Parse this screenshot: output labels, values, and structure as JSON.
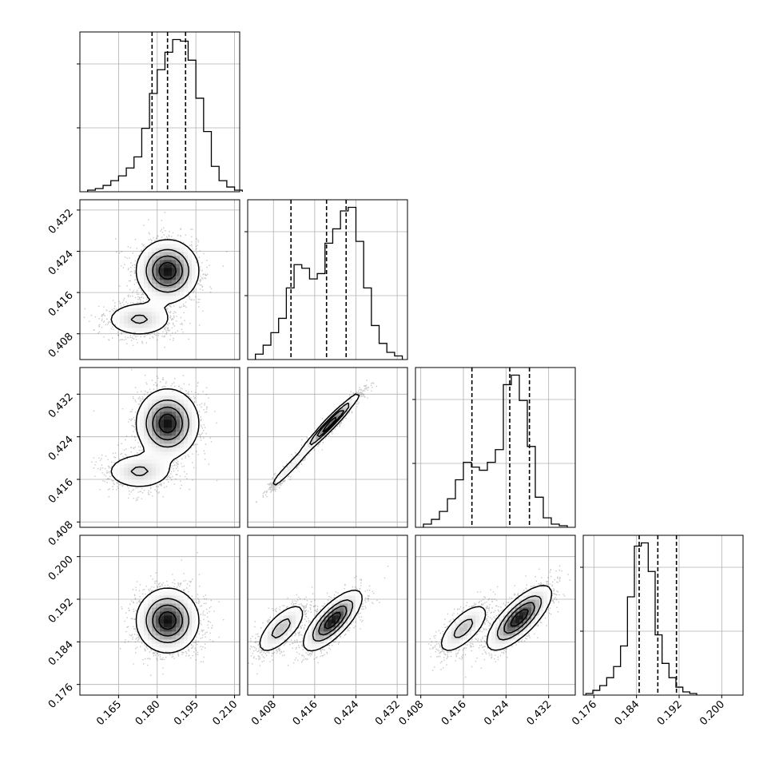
{
  "chart_data": {
    "type": "corner",
    "n_params": 4,
    "params": [
      {
        "range": [
          0.15,
          0.212
        ],
        "ticks": [
          "0.165",
          "0.180",
          "0.195",
          "0.210"
        ],
        "tick_values": [
          0.165,
          0.18,
          0.195,
          0.21
        ],
        "quantiles": [
          0.178,
          0.184,
          0.191
        ],
        "hist_edges_start": 0.153,
        "hist_bin_width": 0.003,
        "hist_counts": [
          1,
          2,
          4,
          7,
          10,
          15,
          22,
          40,
          62,
          77,
          88,
          96,
          95,
          83,
          59,
          38,
          16,
          7,
          3,
          1
        ]
      },
      {
        "range": [
          0.403,
          0.434
        ],
        "ticks": [
          "0.408",
          "0.416",
          "0.424",
          "0.432"
        ],
        "tick_values": [
          0.408,
          0.416,
          0.424,
          0.432
        ],
        "quantiles": [
          0.4114,
          0.4183,
          0.4221
        ],
        "hist_edges_start": 0.4045,
        "hist_bin_width": 0.0015,
        "hist_counts": [
          3,
          8,
          15,
          23,
          40,
          53,
          51,
          45,
          48,
          65,
          73,
          83,
          85,
          66,
          40,
          19,
          9,
          4,
          2
        ]
      },
      {
        "range": [
          0.407,
          0.437
        ],
        "ticks": [
          "0.408",
          "0.416",
          "0.424",
          "0.432"
        ],
        "tick_values": [
          0.408,
          0.416,
          0.424,
          0.432
        ],
        "quantiles": [
          0.4176,
          0.4247,
          0.4284
        ],
        "hist_edges_start": 0.4085,
        "hist_bin_width": 0.0015,
        "hist_counts": [
          2,
          5,
          10,
          18,
          30,
          41,
          38,
          36,
          41,
          49,
          90,
          96,
          80,
          51,
          19,
          6,
          2,
          1
        ]
      },
      {
        "range": [
          0.174,
          0.204
        ],
        "ticks": [
          "0.176",
          "0.184",
          "0.192",
          "0.200"
        ],
        "tick_values": [
          0.176,
          0.184,
          0.192,
          0.2
        ],
        "quantiles": [
          0.1845,
          0.188,
          0.1915
        ],
        "hist_edges_start": 0.1745,
        "hist_bin_width": 0.0013,
        "hist_counts": [
          1,
          3,
          6,
          11,
          18,
          31,
          62,
          94,
          96,
          78,
          38,
          20,
          11,
          5,
          2,
          1
        ]
      }
    ],
    "pairs": [
      {
        "xi": 0,
        "yi": 1,
        "modes": [
          {
            "mx": 0.184,
            "my": 0.4202,
            "sx": 0.006,
            "sy": 0.003,
            "rho": 0.0,
            "w": 0.7
          },
          {
            "mx": 0.173,
            "my": 0.4108,
            "sx": 0.007,
            "sy": 0.0018,
            "rho": 0.0,
            "w": 0.3
          }
        ]
      },
      {
        "xi": 0,
        "yi": 2,
        "modes": [
          {
            "mx": 0.184,
            "my": 0.4265,
            "sx": 0.006,
            "sy": 0.0032,
            "rho": 0.0,
            "w": 0.7
          },
          {
            "mx": 0.173,
            "my": 0.4175,
            "sx": 0.007,
            "sy": 0.0018,
            "rho": 0.0,
            "w": 0.3
          }
        ]
      },
      {
        "xi": 1,
        "yi": 2,
        "modes": [
          {
            "mx": 0.419,
            "my": 0.4265,
            "sx": 0.0028,
            "sy": 0.0028,
            "rho": 0.97,
            "w": 0.7
          },
          {
            "mx": 0.411,
            "my": 0.418,
            "sx": 0.0022,
            "sy": 0.0022,
            "rho": 0.96,
            "w": 0.3
          }
        ]
      },
      {
        "xi": 0,
        "yi": 3,
        "modes": [
          {
            "mx": 0.184,
            "my": 0.188,
            "sx": 0.006,
            "sy": 0.003,
            "rho": 0.0,
            "w": 1.0
          }
        ]
      },
      {
        "xi": 1,
        "yi": 3,
        "modes": [
          {
            "mx": 0.4195,
            "my": 0.188,
            "sx": 0.0028,
            "sy": 0.0028,
            "rho": 0.75,
            "w": 0.65
          },
          {
            "mx": 0.4095,
            "my": 0.1865,
            "sx": 0.0025,
            "sy": 0.0025,
            "rho": 0.7,
            "w": 0.35
          }
        ]
      },
      {
        "xi": 2,
        "yi": 3,
        "modes": [
          {
            "mx": 0.4265,
            "my": 0.1885,
            "sx": 0.003,
            "sy": 0.003,
            "rho": 0.75,
            "w": 0.65
          },
          {
            "mx": 0.416,
            "my": 0.1865,
            "sx": 0.0025,
            "sy": 0.0025,
            "rho": 0.7,
            "w": 0.35
          }
        ]
      }
    ],
    "grid": true,
    "colors": {
      "axes": "#000000",
      "grid": "#b0b0b0",
      "points": "#000000",
      "fill": "#000000"
    }
  }
}
